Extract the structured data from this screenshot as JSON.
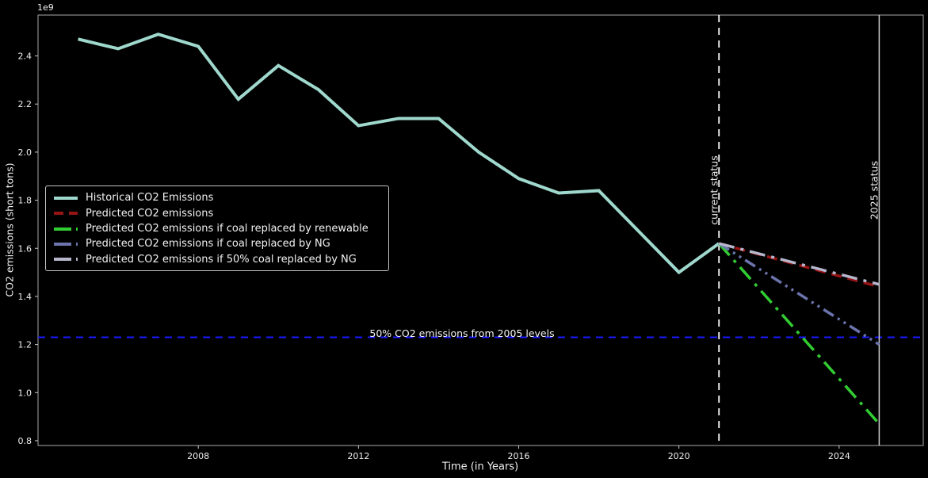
{
  "figure": {
    "background": "#000000",
    "axes": {
      "offset_text": "1e9",
      "xlabel": "Time (in Years)",
      "ylabel": "CO2 emissions (short tons)",
      "spine_color": "#a8a8a8",
      "tick_color": "#c8c8c8",
      "tick_label_color": "#f0f0f0"
    }
  },
  "annotations": {
    "current_status": "current status",
    "status_2025": "2025 status",
    "half_2005_levels": "50% CO2 emissions from 2005 levels"
  },
  "chart_data": {
    "type": "line",
    "title": "",
    "xlabel": "Time (in Years)",
    "ylabel": "CO2 emissions (short tons)",
    "y_unit_multiplier": "1e9",
    "xlim": [
      2004.0,
      2026.1
    ],
    "ylim": [
      0.78,
      2.57
    ],
    "x_ticks": [
      2008,
      2012,
      2016,
      2020,
      2024
    ],
    "y_ticks": [
      0.8,
      1.0,
      1.2,
      1.4,
      1.6,
      1.8,
      2.0,
      2.2,
      2.4
    ],
    "grid": false,
    "legend_position": "center-left",
    "series": [
      {
        "name": "Historical CO2 Emissions",
        "color": "#9fd8cd",
        "style": "solid",
        "width": 4,
        "x": [
          2005,
          2006,
          2007,
          2008,
          2009,
          2010,
          2011,
          2012,
          2013,
          2014,
          2015,
          2016,
          2017,
          2018,
          2019,
          2020,
          2021
        ],
        "y": [
          2.47,
          2.43,
          2.49,
          2.44,
          2.22,
          2.36,
          2.26,
          2.11,
          2.14,
          2.14,
          2.0,
          1.89,
          1.83,
          1.84,
          1.67,
          1.5,
          1.62
        ]
      },
      {
        "name": "Predicted CO2 emissions",
        "color": "#951414",
        "style": "dashed",
        "width": 3.5,
        "x": [
          2021,
          2025
        ],
        "y": [
          1.62,
          1.44
        ]
      },
      {
        "name": "Predicted CO2 emissions if coal replaced by renewable",
        "color": "#32cd32",
        "style": "dashdot",
        "width": 3.5,
        "x": [
          2021,
          2025
        ],
        "y": [
          1.62,
          0.87
        ]
      },
      {
        "name": "Predicted CO2 emissions if coal replaced by NG",
        "color": "#6b74ad",
        "style": "dashdotdot",
        "width": 3.5,
        "x": [
          2021,
          2025
        ],
        "y": [
          1.62,
          1.2
        ]
      },
      {
        "name": "Predicted CO2 emissions if 50% coal replaced by NG",
        "color": "#b6b6cc",
        "style": "dashdot",
        "width": 3.5,
        "x": [
          2021,
          2025
        ],
        "y": [
          1.62,
          1.45
        ]
      }
    ],
    "reference_lines": {
      "horizontal": [
        {
          "value": 1.23,
          "color": "#1a1aff",
          "style": "dashed",
          "width": 2,
          "label": "50% CO2 emissions from 2005 levels"
        }
      ],
      "vertical": [
        {
          "x": 2021,
          "color": "#ffffff",
          "style": "dashed",
          "width": 1.8,
          "label": "current status"
        },
        {
          "x": 2025,
          "color": "#cfcfcf",
          "style": "solid",
          "width": 1.5,
          "label": "2025 status"
        }
      ]
    }
  }
}
